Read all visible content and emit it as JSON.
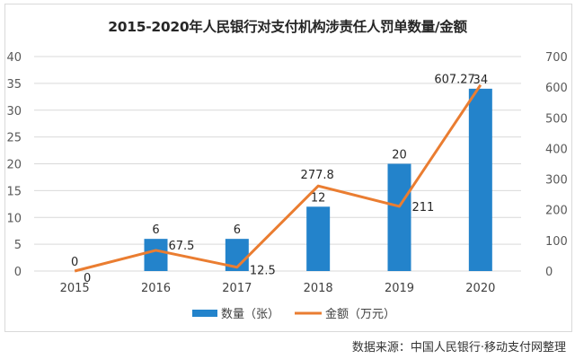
{
  "chart_data": {
    "type": "bar+line",
    "title": "2015-2020年人民银行对支付机构涉责任人罚单数量/金额",
    "categories": [
      "2015",
      "2016",
      "2017",
      "2018",
      "2019",
      "2020"
    ],
    "series": [
      {
        "name": "数量（张）",
        "type": "bar",
        "axis": "left",
        "color": "#2383cb",
        "values": [
          0,
          6,
          6,
          12,
          20,
          34
        ]
      },
      {
        "name": "金额（万元）",
        "type": "line",
        "axis": "right",
        "color": "#ea7d31",
        "values": [
          0,
          67.5,
          12.5,
          277.8,
          211,
          607.27
        ]
      }
    ],
    "left_axis": {
      "ylim": [
        0,
        40
      ],
      "ticks": [
        0,
        5,
        10,
        15,
        20,
        25,
        30,
        35,
        40
      ]
    },
    "right_axis": {
      "ylim": [
        0,
        700
      ],
      "ticks": [
        0,
        100,
        200,
        300,
        400,
        500,
        600,
        700
      ]
    },
    "bar_labels": [
      "0",
      "6",
      "6",
      "12",
      "20",
      "34"
    ],
    "line_labels": [
      "0",
      "67.5",
      "12.5",
      "277.8",
      "211",
      "607.27"
    ],
    "grid": true,
    "legend_position": "bottom"
  },
  "legend": {
    "bar": "数量（张）",
    "line": "金额（万元）"
  },
  "source": "数据来源：中国人民银行·移动支付网整理"
}
